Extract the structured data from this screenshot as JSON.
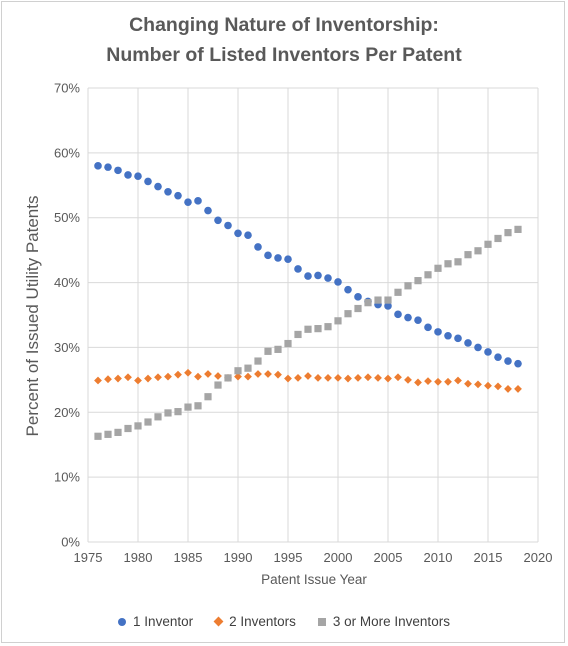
{
  "chart_data": {
    "type": "scatter",
    "title_line1": "Changing Nature of Inventorship:",
    "title_line2": "Number of Listed Inventors Per Patent",
    "xlabel": "Patent Issue Year",
    "ylabel": "Percent of Issued Utility Patents",
    "xlim": [
      1975,
      2020
    ],
    "ylim": [
      0,
      70
    ],
    "xticks": [
      1975,
      1980,
      1985,
      1990,
      1995,
      2000,
      2005,
      2010,
      2015,
      2020
    ],
    "yticks": [
      "0%",
      "10%",
      "20%",
      "30%",
      "40%",
      "50%",
      "60%",
      "70%"
    ],
    "grid": true,
    "legend_position": "bottom",
    "x": [
      1976,
      1977,
      1978,
      1979,
      1980,
      1981,
      1982,
      1983,
      1984,
      1985,
      1986,
      1987,
      1988,
      1989,
      1990,
      1991,
      1992,
      1993,
      1994,
      1995,
      1996,
      1997,
      1998,
      1999,
      2000,
      2001,
      2002,
      2003,
      2004,
      2005,
      2006,
      2007,
      2008,
      2009,
      2010,
      2011,
      2012,
      2013,
      2014,
      2015,
      2016,
      2017,
      2018
    ],
    "series": [
      {
        "name": "1 Inventor",
        "color": "#4472c4",
        "marker": "circle",
        "values": [
          58.0,
          57.8,
          57.3,
          56.6,
          56.4,
          55.6,
          54.8,
          54.0,
          53.4,
          52.4,
          52.6,
          51.1,
          49.6,
          48.8,
          47.6,
          47.3,
          45.5,
          44.2,
          43.8,
          43.6,
          42.1,
          41.0,
          41.1,
          40.7,
          40.1,
          38.9,
          37.8,
          37.1,
          36.6,
          36.4,
          35.1,
          34.6,
          34.2,
          33.1,
          32.4,
          31.8,
          31.4,
          30.7,
          30.0,
          29.3,
          28.5,
          27.9,
          27.5
        ]
      },
      {
        "name": "2 Inventors",
        "color": "#ed7d31",
        "marker": "diamond",
        "values": [
          24.9,
          25.1,
          25.2,
          25.4,
          24.9,
          25.2,
          25.4,
          25.5,
          25.8,
          26.1,
          25.5,
          25.9,
          25.6,
          25.3,
          25.5,
          25.5,
          25.9,
          25.9,
          25.8,
          25.2,
          25.3,
          25.6,
          25.3,
          25.3,
          25.3,
          25.2,
          25.3,
          25.4,
          25.3,
          25.2,
          25.4,
          25.0,
          24.6,
          24.8,
          24.7,
          24.7,
          24.9,
          24.4,
          24.3,
          24.1,
          24.0,
          23.6,
          23.6
        ]
      },
      {
        "name": "3 or More Inventors",
        "color": "#a5a5a5",
        "marker": "square",
        "values": [
          16.3,
          16.6,
          16.9,
          17.5,
          17.9,
          18.5,
          19.3,
          19.9,
          20.1,
          20.8,
          21.0,
          22.4,
          24.2,
          25.3,
          26.4,
          26.8,
          27.9,
          29.4,
          29.7,
          30.6,
          32.0,
          32.8,
          32.9,
          33.2,
          34.1,
          35.2,
          36.0,
          36.9,
          37.3,
          37.3,
          38.5,
          39.5,
          40.3,
          41.2,
          42.2,
          42.9,
          43.2,
          44.3,
          44.9,
          45.9,
          46.8,
          47.7,
          48.2
        ]
      }
    ]
  }
}
